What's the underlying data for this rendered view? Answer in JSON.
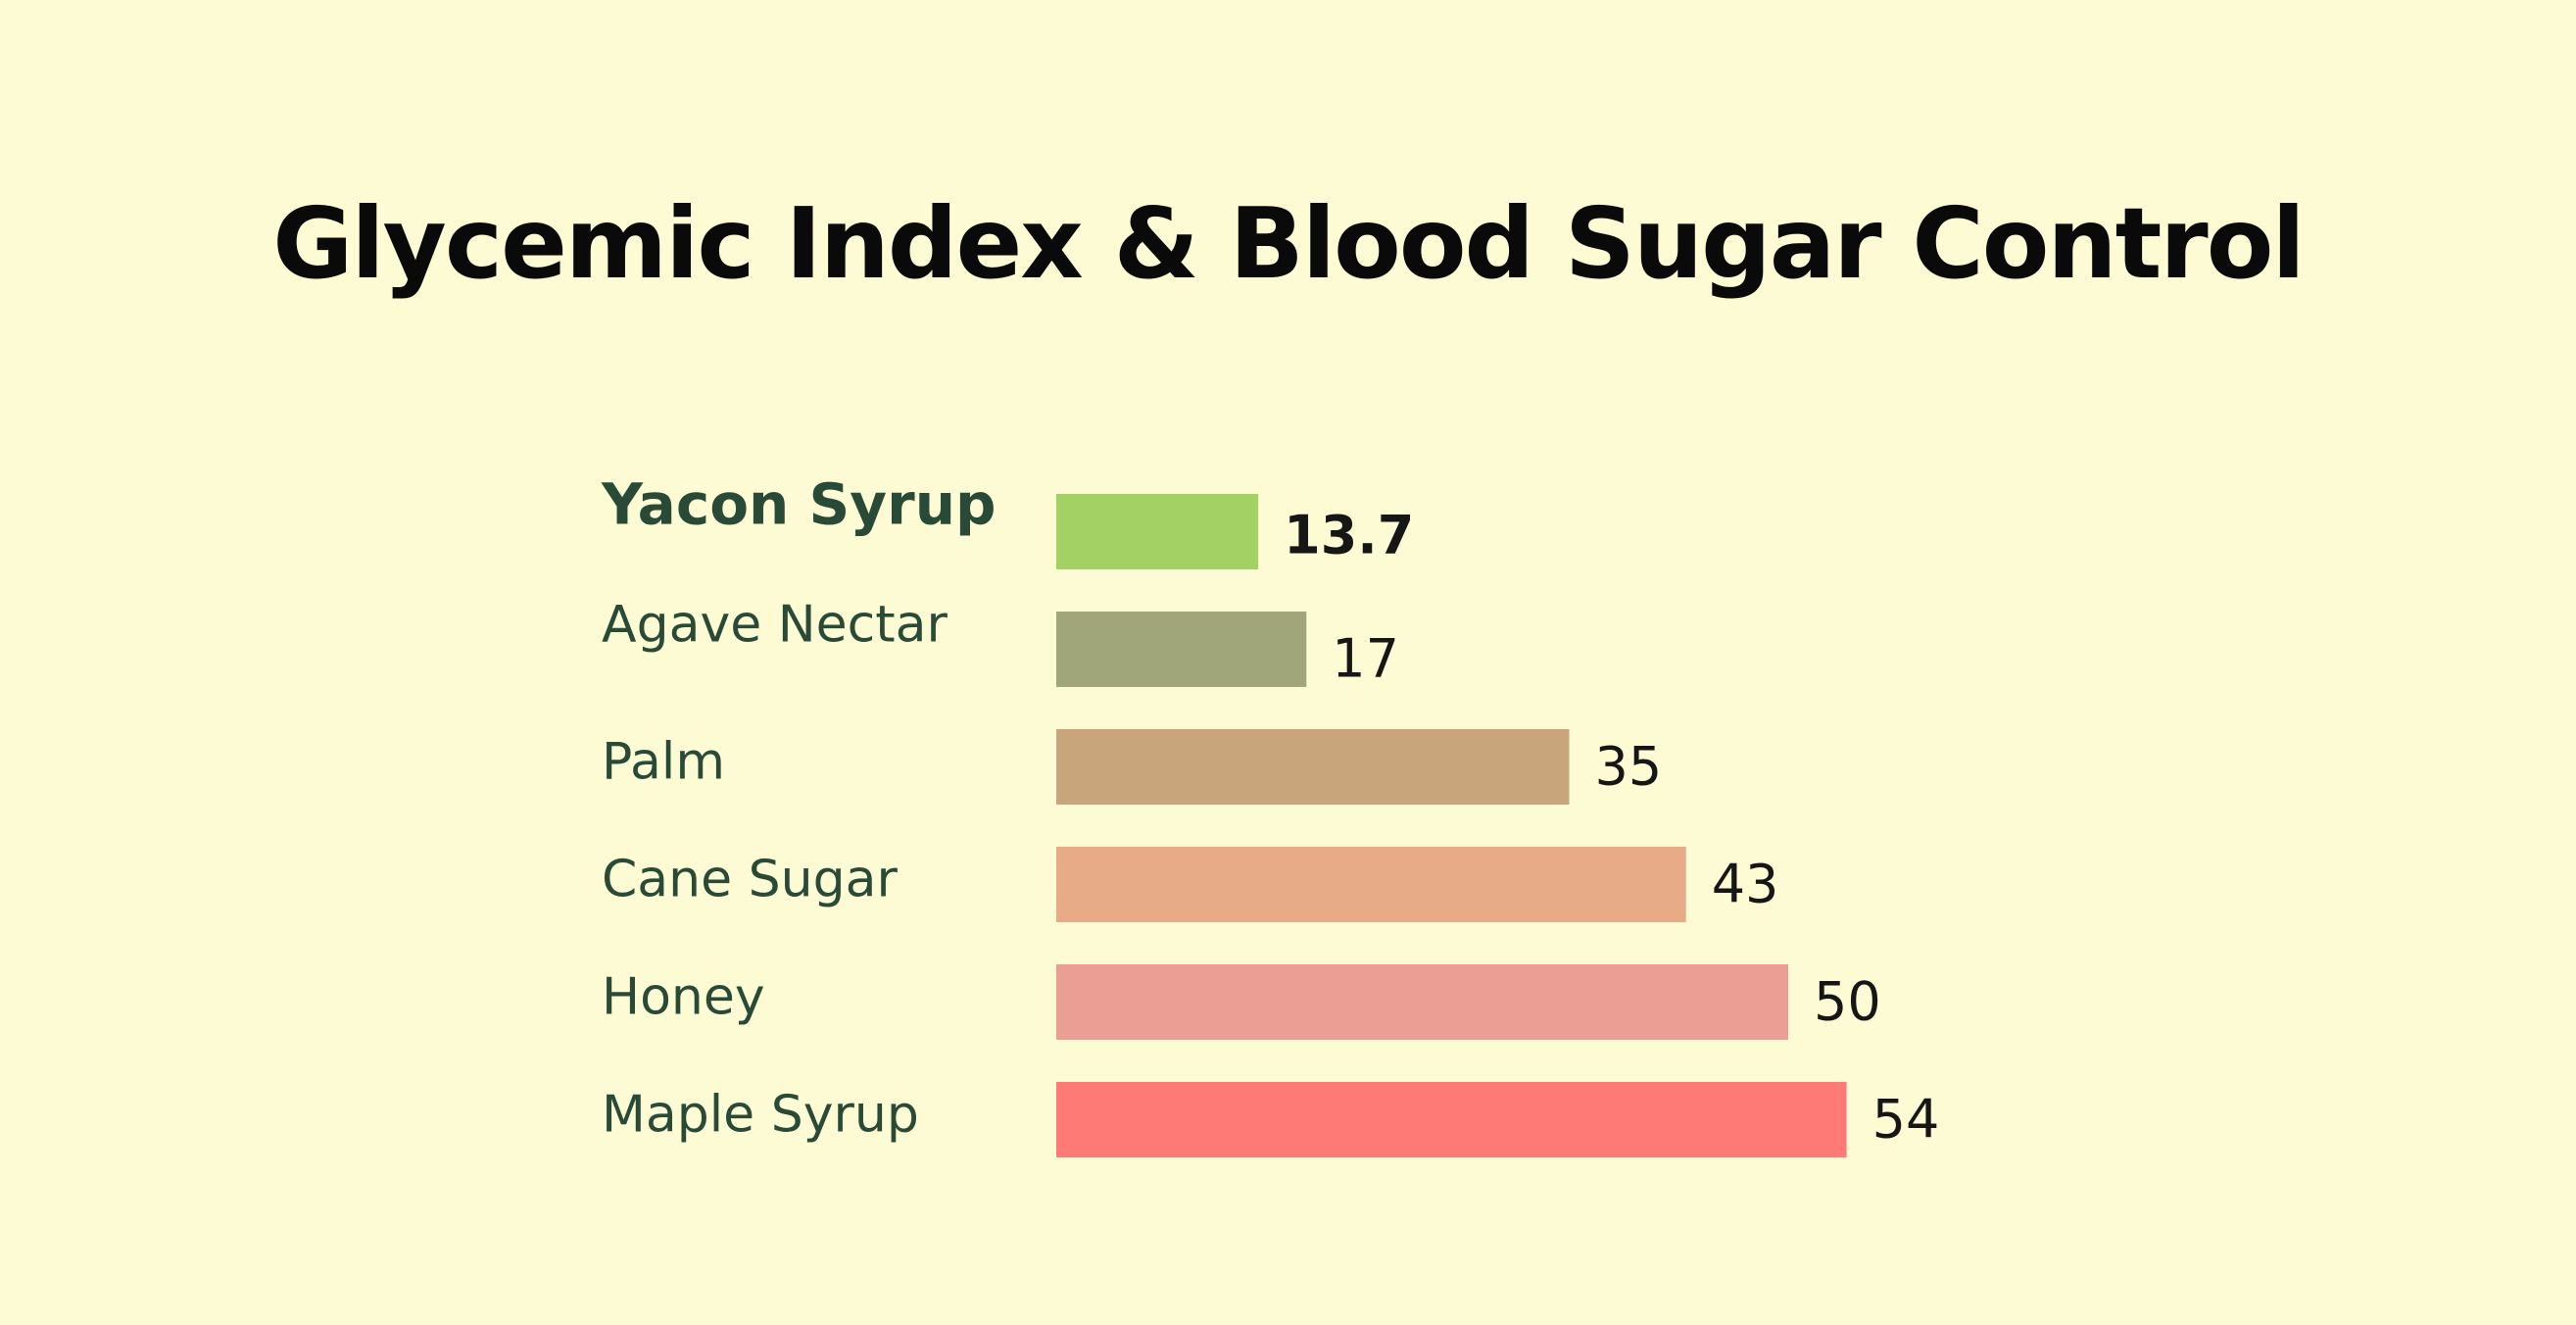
{
  "chart_data": {
    "type": "bar",
    "orientation": "horizontal",
    "title": "Glycemic Index & Blood Sugar Control",
    "categories": [
      "Yacon Syrup",
      "Agave Nectar",
      "Palm",
      "Cane Sugar",
      "Honey",
      "Maple Syrup"
    ],
    "values": [
      13.7,
      17,
      35,
      43,
      50,
      54
    ],
    "value_labels": [
      "13.7",
      "17",
      "35",
      "43",
      "50",
      "54"
    ],
    "colors": [
      "#a3d163",
      "#a0a679",
      "#c8a57a",
      "#e7ab88",
      "#eb9e93",
      "#fe7a76"
    ],
    "highlight_index": 0,
    "xlabel": "",
    "ylabel": "",
    "grid": false,
    "legend": "none",
    "xlim": [
      0,
      54
    ]
  }
}
